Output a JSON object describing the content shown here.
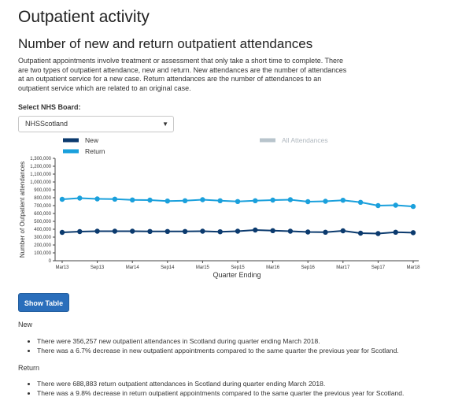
{
  "page": {
    "title": "Outpatient activity",
    "subtitle": "Number of new and return outpatient attendances",
    "intro": "Outpatient appointments involve treatment or assessment that only take a short time to complete. There are two types of outpatient attendance, new and return. New attendances are the number of attendances at an outpatient service for a new case. Return attendances are the number of attendances to an outpatient service which are related to an original case."
  },
  "board_select": {
    "label": "Select NHS Board:",
    "value": "NHSScotland",
    "arrow": "▼"
  },
  "show_table_label": "Show Table",
  "summary": {
    "new": {
      "heading": "New",
      "bullets": [
        "There were 356,257 new outpatient attendances in Scotland during quarter ending March 2018.",
        "There was a 6.7% decrease in new outpatient appointments compared to the same quarter the previous year for Scotland."
      ]
    },
    "return": {
      "heading": "Return",
      "bullets": [
        "There were 688,883 return outpatient attendances in Scotland during quarter ending March 2018.",
        "There was a 9.8% decrease in return outpatient appointments compared to the same quarter the previous year for Scotland."
      ]
    }
  },
  "chart_data": {
    "type": "line",
    "xlabel": "Quarter Ending",
    "ylabel": "Number of Outpatient attendances",
    "ylim": [
      0,
      1300000
    ],
    "yticks": [
      0,
      100000,
      200000,
      300000,
      400000,
      500000,
      600000,
      700000,
      800000,
      900000,
      1000000,
      1100000,
      1200000,
      1300000
    ],
    "ytick_labels": [
      "0",
      "100,000",
      "200,000",
      "300,000",
      "400,000",
      "500,000",
      "600,000",
      "700,000",
      "800,000",
      "900,000",
      "1,000,000",
      "1,100,000",
      "1,200,000",
      "1,300,000"
    ],
    "x": [
      "Mar13",
      "Jun13",
      "Sep13",
      "Dec13",
      "Mar14",
      "Jun14",
      "Sep14",
      "Dec14",
      "Mar15",
      "Jun15",
      "Sep15",
      "Dec15",
      "Mar16",
      "Jun16",
      "Sep16",
      "Dec16",
      "Mar17",
      "Jun17",
      "Sep17",
      "Dec17",
      "Mar18"
    ],
    "xtick_labels": [
      "Mar13",
      "Sep13",
      "Mar14",
      "Sep14",
      "Mar15",
      "Sep15",
      "Mar16",
      "Sep16",
      "Mar17",
      "Sep17",
      "Mar18"
    ],
    "series": [
      {
        "name": "New",
        "color": "#0b3a6e",
        "values": [
          360000,
          370000,
          375000,
          375000,
          375000,
          372000,
          372000,
          372000,
          375000,
          368000,
          375000,
          390000,
          382000,
          375000,
          365000,
          362000,
          380000,
          350000,
          345000,
          362000,
          356257
        ]
      },
      {
        "name": "Return",
        "color": "#1aa0dc",
        "values": [
          780000,
          795000,
          785000,
          782000,
          772000,
          770000,
          758000,
          762000,
          775000,
          762000,
          752000,
          762000,
          770000,
          775000,
          750000,
          755000,
          768000,
          742000,
          700000,
          705000,
          688883
        ]
      }
    ],
    "legend": [
      {
        "name": "New",
        "color": "#0b3a6e",
        "active": true
      },
      {
        "name": "Return",
        "color": "#1aa0dc",
        "active": true
      },
      {
        "name": "All Attendances",
        "color": "#b8c4cc",
        "active": false
      }
    ]
  }
}
